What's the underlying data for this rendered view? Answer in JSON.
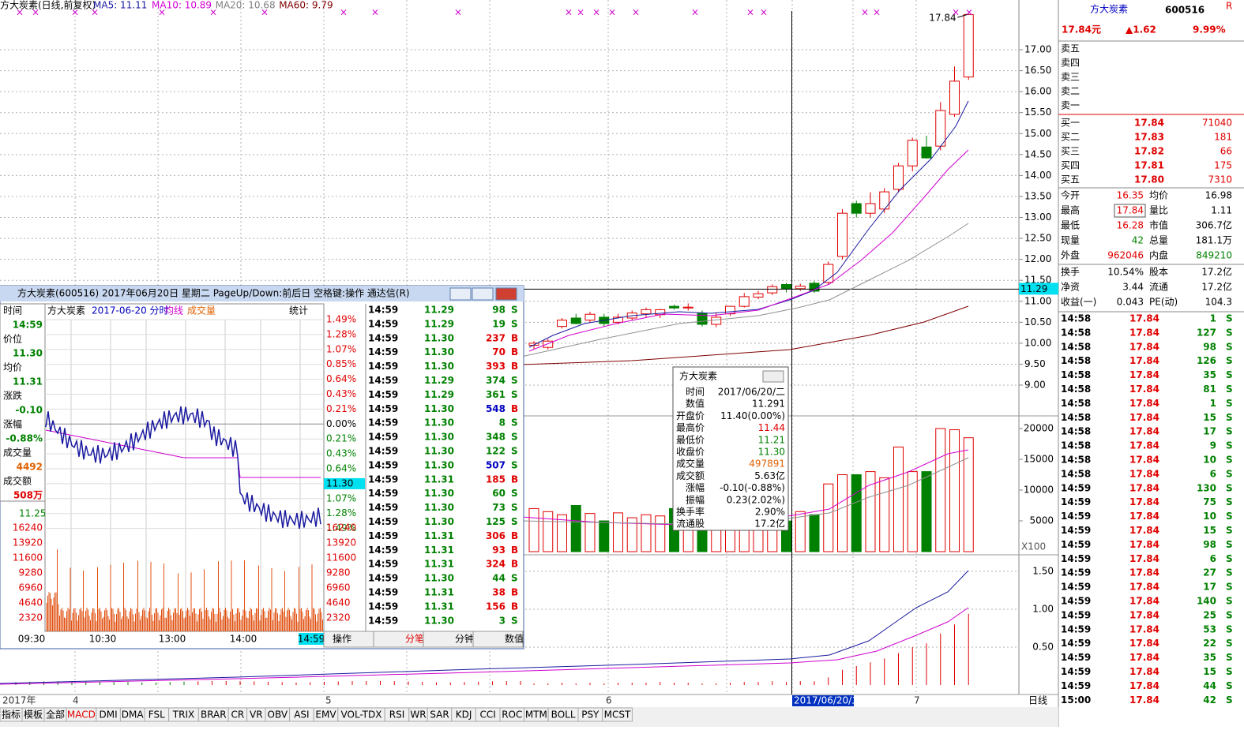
{
  "header": {
    "stock": "方大炭素(日线,前复权)",
    "ma": [
      {
        "label": "MA5: 11.11",
        "color": "#1a1aa0"
      },
      {
        "label": "MA10: 10.89",
        "color": "#d000d0"
      },
      {
        "label": "MA20: 10.68",
        "color": "#808080"
      },
      {
        "label": "MA60: 9.79",
        "color": "#800000"
      }
    ]
  },
  "kline": {
    "yticks": [
      {
        "value": 17,
        "label": "17.00"
      },
      {
        "value": 16.5,
        "label": "16.50"
      },
      {
        "value": 16,
        "label": "16.00"
      },
      {
        "value": 15.5,
        "label": "15.50"
      },
      {
        "value": 15,
        "label": "15.00"
      },
      {
        "value": 14.5,
        "label": "14.50"
      },
      {
        "value": 14,
        "label": "14.00"
      },
      {
        "value": 13.5,
        "label": "13.50"
      },
      {
        "value": 13,
        "label": "13.00"
      },
      {
        "value": 12.5,
        "label": "12.50"
      },
      {
        "value": 12,
        "label": "12.00"
      },
      {
        "value": 11.5,
        "label": "11.50"
      },
      {
        "value": 11,
        "label": "11.00"
      },
      {
        "value": 10.5,
        "label": "10.50"
      },
      {
        "value": 10,
        "label": "10.00"
      },
      {
        "value": 9.5,
        "label": "9.50"
      },
      {
        "value": 9,
        "label": "9.00"
      }
    ],
    "candles": [
      [
        9.95,
        10.05,
        9.85,
        10.0
      ],
      [
        9.9,
        10.1,
        9.85,
        10.05
      ],
      [
        10.4,
        10.6,
        10.35,
        10.55
      ],
      [
        10.6,
        10.7,
        10.45,
        10.47
      ],
      [
        10.55,
        10.75,
        10.5,
        10.69
      ],
      [
        10.62,
        10.7,
        10.4,
        10.47
      ],
      [
        10.5,
        10.7,
        10.45,
        10.62
      ],
      [
        10.6,
        10.78,
        10.55,
        10.72
      ],
      [
        10.7,
        10.85,
        10.62,
        10.8
      ],
      [
        10.68,
        10.82,
        10.6,
        10.8
      ],
      [
        10.88,
        10.92,
        10.8,
        10.84
      ],
      [
        10.84,
        10.95,
        10.78,
        10.86
      ],
      [
        10.71,
        10.78,
        10.4,
        10.45
      ],
      [
        10.45,
        10.72,
        10.38,
        10.62
      ],
      [
        10.7,
        10.85,
        10.65,
        10.88
      ],
      [
        10.88,
        11.2,
        10.85,
        11.11
      ],
      [
        11.1,
        11.25,
        11.05,
        11.18
      ],
      [
        11.2,
        11.4,
        11.15,
        11.35
      ],
      [
        11.4,
        11.44,
        11.21,
        11.3
      ],
      [
        11.3,
        11.42,
        11.25,
        11.36
      ],
      [
        11.43,
        11.48,
        11.2,
        11.24
      ],
      [
        11.45,
        11.95,
        11.4,
        11.88
      ],
      [
        12.07,
        13.2,
        12.0,
        13.1
      ],
      [
        13.33,
        13.4,
        13.0,
        13.1
      ],
      [
        13.1,
        13.6,
        13.0,
        13.33
      ],
      [
        13.2,
        13.7,
        13.1,
        13.61
      ],
      [
        13.67,
        14.3,
        13.6,
        14.23
      ],
      [
        14.23,
        14.9,
        14.1,
        14.84
      ],
      [
        14.68,
        14.95,
        14.4,
        14.42
      ],
      [
        14.7,
        15.75,
        14.6,
        15.55
      ],
      [
        15.46,
        16.6,
        15.4,
        16.25
      ],
      [
        16.35,
        17.84,
        16.28,
        17.84
      ]
    ],
    "last_label": "17.84",
    "cursor": {
      "value": 11.29,
      "label": "11.29"
    },
    "cursor_index": 18,
    "volume": {
      "yticks": [
        20000,
        15000,
        10000,
        5000
      ],
      "unit": "X100",
      "values": [
        7000,
        6500,
        6000,
        7500,
        6200,
        5000,
        6300,
        5500,
        6000,
        5800,
        7000,
        5200,
        6800,
        5000,
        6000,
        6200,
        7000,
        7500,
        4978.91,
        6500,
        6000,
        11000,
        12500,
        12500,
        13000,
        12000,
        17000,
        13000,
        13000,
        20000,
        19800,
        18500
      ]
    },
    "macd": {
      "yticks": [
        {
          "value": 1.5,
          "label": "1.50"
        },
        {
          "value": 1,
          "label": "1.00"
        },
        {
          "value": 0.5,
          "label": "0.50"
        }
      ],
      "bars": [
        0.02,
        0.02,
        0.03,
        0.02,
        0.03,
        0.02,
        0.03,
        0.03,
        0.03,
        0.04,
        0.03,
        0.03,
        0.02,
        0.02,
        0.03,
        0.04,
        0.04,
        0.05,
        0.04,
        0.05,
        0.05,
        0.1,
        0.2,
        0.25,
        0.3,
        0.35,
        0.42,
        0.5,
        0.55,
        0.68,
        0.8,
        0.94
      ]
    },
    "dates": {
      "labels": [
        "2017年",
        "4",
        "5",
        "6",
        "7"
      ],
      "cursor": "2017/06/20/二"
    },
    "period": "日线"
  },
  "quote": {
    "name": "方大炭素",
    "code": "600516",
    "flag": "R",
    "price": "17.84元",
    "change": "▲1.62",
    "pct": "9.99%",
    "asks": [
      "卖五",
      "卖四",
      "卖三",
      "卖二",
      "卖一"
    ],
    "bids": [
      [
        "买一",
        "17.84",
        "71040"
      ],
      [
        "买二",
        "17.83",
        "181"
      ],
      [
        "买三",
        "17.82",
        "66"
      ],
      [
        "买四",
        "17.81",
        "175"
      ],
      [
        "买五",
        "17.80",
        "7310"
      ]
    ],
    "stats": [
      [
        "今开",
        "16.35",
        "均价",
        "16.98"
      ],
      [
        "最高",
        "17.84",
        "量比",
        "1.11"
      ],
      [
        "最低",
        "16.28",
        "市值",
        "306.7亿"
      ],
      [
        "现量",
        "42",
        "总量",
        "181.1万"
      ],
      [
        "外盘",
        "962046",
        "内盘",
        "849210"
      ],
      [
        "换手",
        "10.54%",
        "股本",
        "17.2亿"
      ],
      [
        "净资",
        "3.44",
        "流通",
        "17.2亿"
      ],
      [
        "收益(一)",
        "0.043",
        "PE(动)",
        "104.3"
      ]
    ],
    "ticks": [
      [
        "14:58",
        "17.84",
        "1",
        "S"
      ],
      [
        "14:58",
        "17.84",
        "127",
        "S"
      ],
      [
        "14:58",
        "17.84",
        "98",
        "S"
      ],
      [
        "14:58",
        "17.84",
        "126",
        "S"
      ],
      [
        "14:58",
        "17.84",
        "35",
        "S"
      ],
      [
        "14:58",
        "17.84",
        "81",
        "S"
      ],
      [
        "14:58",
        "17.84",
        "1",
        "S"
      ],
      [
        "14:58",
        "17.84",
        "15",
        "S"
      ],
      [
        "14:58",
        "17.84",
        "17",
        "S"
      ],
      [
        "14:58",
        "17.84",
        "9",
        "S"
      ],
      [
        "14:58",
        "17.84",
        "10",
        "S"
      ],
      [
        "14:58",
        "17.84",
        "6",
        "S"
      ],
      [
        "14:59",
        "17.84",
        "130",
        "S"
      ],
      [
        "14:59",
        "17.84",
        "75",
        "S"
      ],
      [
        "14:59",
        "17.84",
        "10",
        "S"
      ],
      [
        "14:59",
        "17.84",
        "15",
        "S"
      ],
      [
        "14:59",
        "17.84",
        "98",
        "S"
      ],
      [
        "14:59",
        "17.84",
        "6",
        "S"
      ],
      [
        "14:59",
        "17.84",
        "27",
        "S"
      ],
      [
        "14:59",
        "17.84",
        "17",
        "S"
      ],
      [
        "14:59",
        "17.84",
        "140",
        "S"
      ],
      [
        "14:59",
        "17.84",
        "25",
        "S"
      ],
      [
        "14:59",
        "17.84",
        "53",
        "S"
      ],
      [
        "14:59",
        "17.84",
        "22",
        "S"
      ],
      [
        "14:59",
        "17.84",
        "35",
        "S"
      ],
      [
        "14:59",
        "17.84",
        "15",
        "S"
      ],
      [
        "14:59",
        "17.84",
        "44",
        "S"
      ],
      [
        "15:00",
        "17.84",
        "42",
        "S"
      ]
    ]
  },
  "tooltip": {
    "title": "方大炭素",
    "rows": [
      [
        "时间",
        "2017/06/20/二"
      ],
      [
        "数值",
        "11.291"
      ],
      [
        "开盘价",
        "11.40(0.00%)"
      ],
      [
        "最高价",
        "11.44"
      ],
      [
        "最低价",
        "11.21"
      ],
      [
        "收盘价",
        "11.30"
      ],
      [
        "成交量",
        "497891"
      ],
      [
        "成交额",
        "5.63亿"
      ],
      [
        "涨幅",
        "-0.10(-0.88%)"
      ],
      [
        "振幅",
        "0.23(2.02%)"
      ],
      [
        "换手率",
        "2.90%"
      ],
      [
        "流通股",
        "17.2亿"
      ]
    ]
  },
  "popup": {
    "title": "方大炭素(600516) 2017年06月20日 星期二 PageUp/Down:前后日 空格键:操作 通达信(R)",
    "info": [
      [
        "时间",
        "14:59"
      ],
      [
        "价位",
        "11.30"
      ],
      [
        "均价",
        "11.31"
      ],
      [
        "涨跌",
        "-0.10"
      ],
      [
        "涨幅",
        "-0.88%"
      ],
      [
        "成交量",
        "4492"
      ],
      [
        "成交额",
        "508万"
      ]
    ],
    "chart_header": [
      "方大炭素",
      "2017-06-20 分时",
      "均线",
      "成交量",
      "统计"
    ],
    "pct_axis": [
      "1.49%",
      "1.28%",
      "1.07%",
      "0.85%",
      "0.64%",
      "0.43%",
      "0.21%",
      "0.00%",
      "0.21%",
      "0.43%",
      "0.64%",
      "11.30",
      "1.07%",
      "1.28%",
      "1.49%"
    ],
    "vol_axis": [
      "16240",
      "13920",
      "11600",
      "9280",
      "6960",
      "4640",
      "2320"
    ],
    "left_price": "11.25",
    "times": [
      "09:30",
      "10:30",
      "13:00",
      "14:00",
      "14:59"
    ],
    "tabs": [
      "操作",
      "分笔",
      "分钟",
      "数值"
    ],
    "trades": [
      [
        "14:59",
        "11.29",
        "98",
        "S"
      ],
      [
        "14:59",
        "11.29",
        "19",
        "S"
      ],
      [
        "14:59",
        "11.30",
        "237",
        "B"
      ],
      [
        "14:59",
        "11.30",
        "70",
        "B"
      ],
      [
        "14:59",
        "11.30",
        "393",
        "B"
      ],
      [
        "14:59",
        "11.29",
        "374",
        "S"
      ],
      [
        "14:59",
        "11.29",
        "361",
        "S"
      ],
      [
        "14:59",
        "11.30",
        "548",
        "B"
      ],
      [
        "14:59",
        "11.30",
        "8",
        "S"
      ],
      [
        "14:59",
        "11.30",
        "348",
        "S"
      ],
      [
        "14:59",
        "11.30",
        "122",
        "S"
      ],
      [
        "14:59",
        "11.30",
        "507",
        "S"
      ],
      [
        "14:59",
        "11.31",
        "185",
        "B"
      ],
      [
        "14:59",
        "11.30",
        "60",
        "S"
      ],
      [
        "14:59",
        "11.30",
        "73",
        "S"
      ],
      [
        "14:59",
        "11.30",
        "125",
        "S"
      ],
      [
        "14:59",
        "11.31",
        "306",
        "B"
      ],
      [
        "14:59",
        "11.31",
        "93",
        "B"
      ],
      [
        "14:59",
        "11.31",
        "324",
        "B"
      ],
      [
        "14:59",
        "11.30",
        "44",
        "S"
      ],
      [
        "14:59",
        "11.31",
        "38",
        "B"
      ],
      [
        "14:59",
        "11.31",
        "156",
        "B"
      ],
      [
        "14:59",
        "11.30",
        "3",
        "S"
      ]
    ]
  },
  "toolbar": [
    "指标",
    "模板",
    "全部",
    "MACD",
    "DMI",
    "DMA",
    "FSL",
    "TRIX",
    "BRAR",
    "CR",
    "VR",
    "OBV",
    "ASI",
    "EMV",
    "VOL-TDX",
    "RSI",
    "WR",
    "SAR",
    "KDJ",
    "CCI",
    "ROC",
    "MTM",
    "BOLL",
    "PSY",
    "MCST"
  ]
}
